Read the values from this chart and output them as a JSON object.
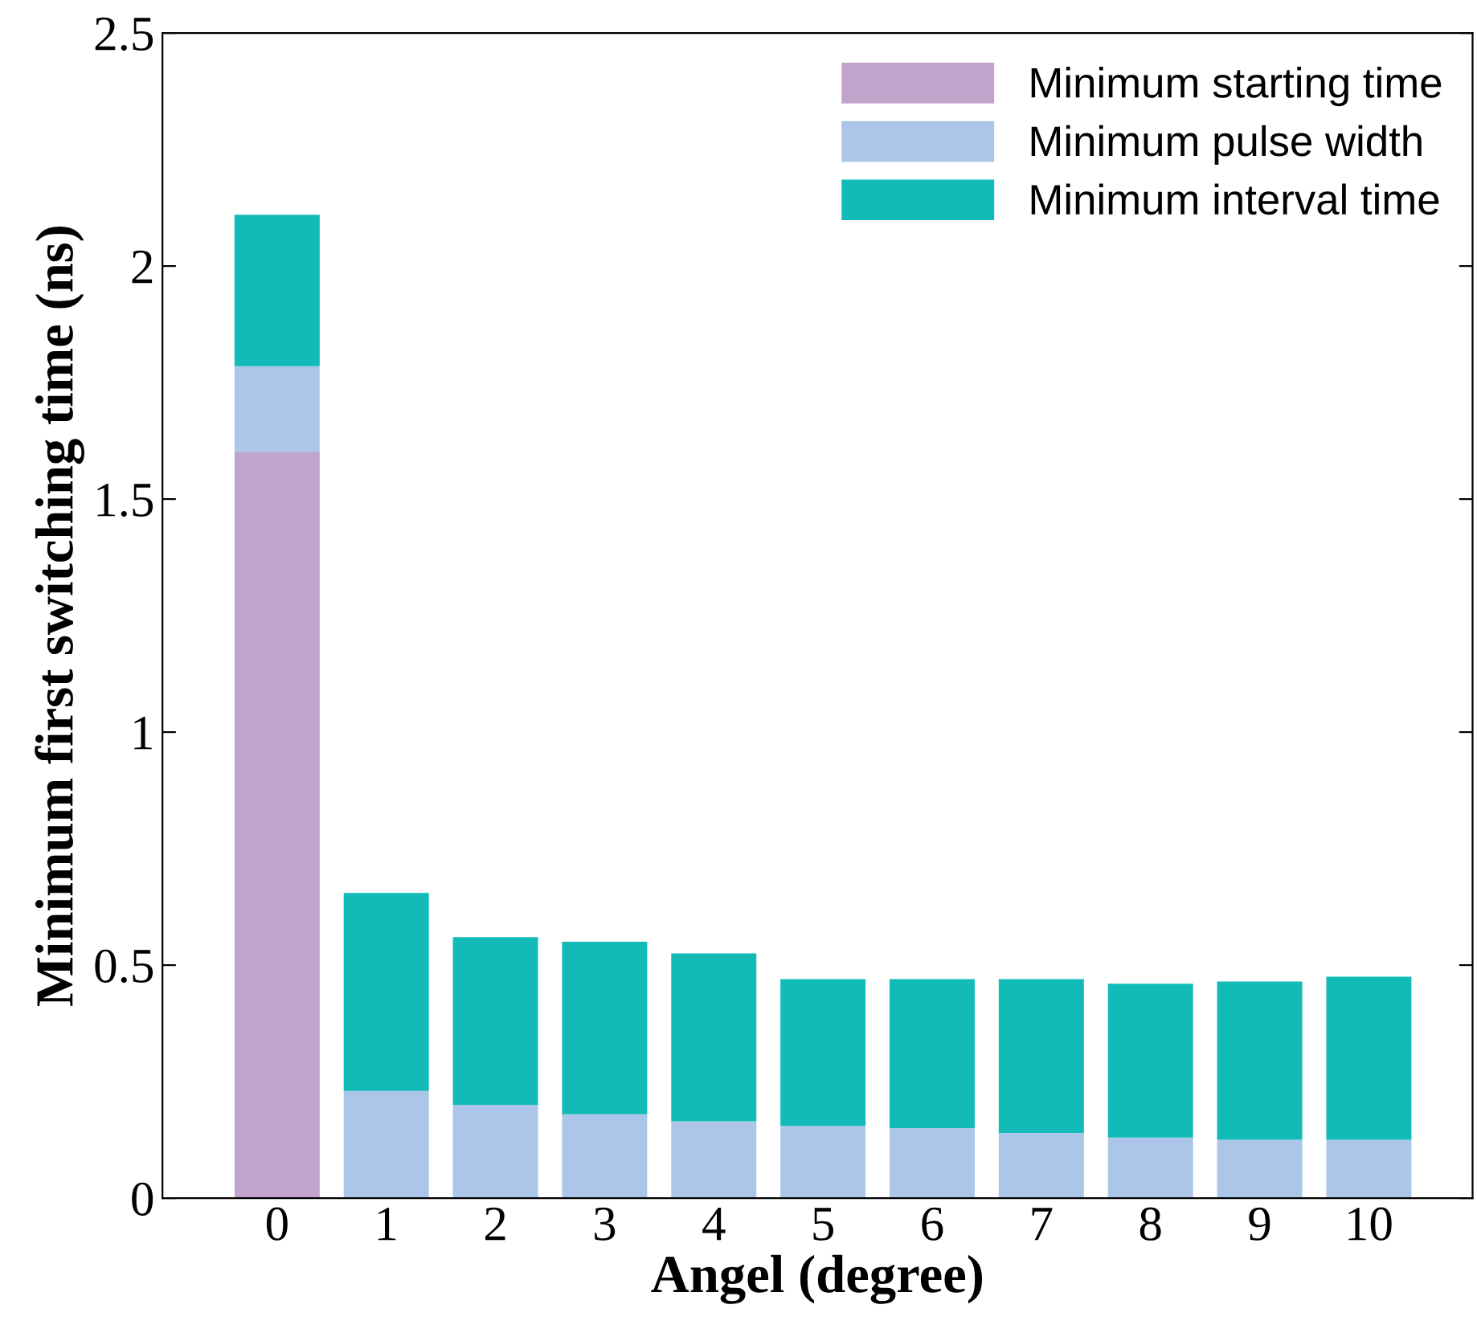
{
  "chart_data": {
    "type": "bar",
    "stacked": true,
    "xlabel": "Angel (degree)",
    "ylabel": "Minimum first switching time (ns)",
    "categories": [
      "0",
      "1",
      "2",
      "3",
      "4",
      "5",
      "6",
      "7",
      "8",
      "9",
      "10"
    ],
    "series": [
      {
        "name": "Minimum starting time",
        "color": "#c0a4cc",
        "values": [
          1.6,
          0,
          0,
          0,
          0,
          0,
          0,
          0,
          0,
          0,
          0
        ]
      },
      {
        "name": "Minimum pulse width",
        "color": "#abc6e8",
        "values": [
          0.185,
          0.23,
          0.2,
          0.18,
          0.165,
          0.155,
          0.15,
          0.14,
          0.13,
          0.125,
          0.125
        ]
      },
      {
        "name": "Minimum interval time",
        "color": "#13bbb8",
        "values": [
          0.325,
          0.425,
          0.36,
          0.37,
          0.36,
          0.315,
          0.32,
          0.33,
          0.33,
          0.34,
          0.35
        ]
      }
    ],
    "ylim": [
      0,
      2.5
    ],
    "yticks": [
      0,
      0.5,
      1,
      1.5,
      2,
      2.5
    ],
    "grid": false,
    "legend": "top right"
  }
}
